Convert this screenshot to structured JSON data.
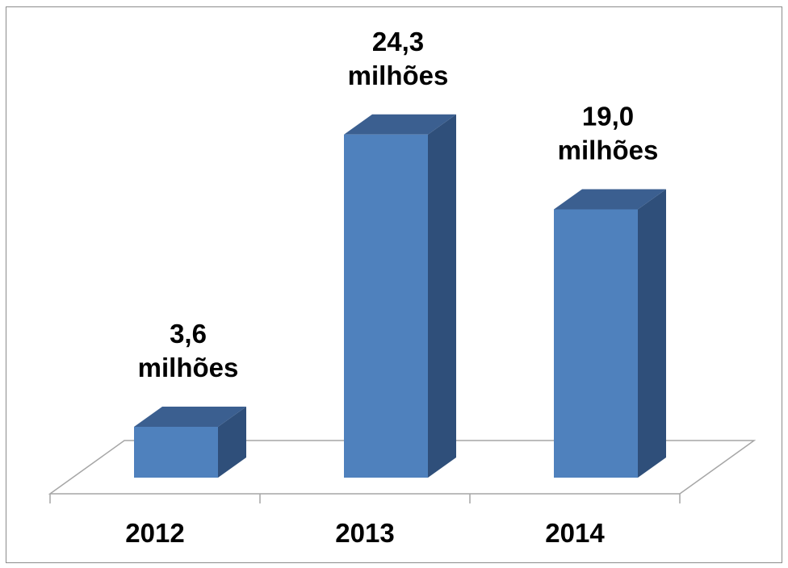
{
  "chart_data": {
    "type": "bar",
    "style": "3d-column",
    "categories": [
      "2012",
      "2013",
      "2014"
    ],
    "values": [
      3.6,
      24.3,
      19.0
    ],
    "data_labels": [
      [
        "3,6",
        "milhões"
      ],
      [
        "24,3",
        "milhões"
      ],
      [
        "19,0",
        "milhões"
      ]
    ],
    "title": "",
    "xlabel": "",
    "ylabel": "",
    "grid": false,
    "legend": "none"
  },
  "colors": {
    "bar_front": "#4f81bd",
    "bar_side": "#2f4f7a",
    "bar_top": "#3b5f90",
    "floor_line": "#a6a6a6"
  }
}
